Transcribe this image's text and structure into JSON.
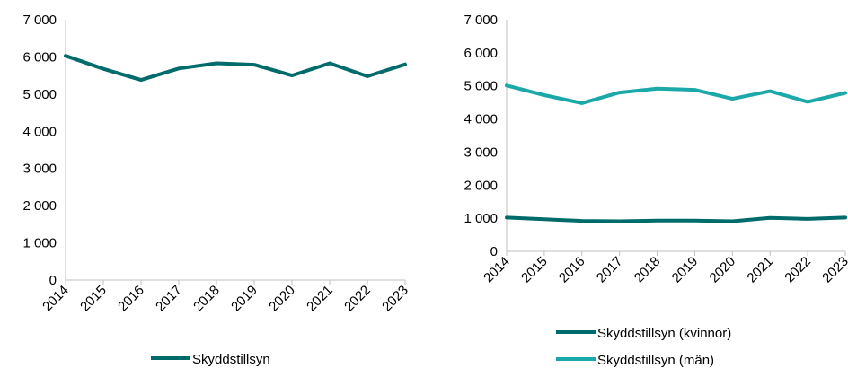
{
  "chart_data": [
    {
      "type": "line",
      "title": "",
      "xlabel": "",
      "ylabel": "",
      "x": [
        "2014",
        "2015",
        "2016",
        "2017",
        "2018",
        "2019",
        "2020",
        "2021",
        "2022",
        "2023"
      ],
      "ylim": [
        0,
        7000
      ],
      "yticks": [
        0,
        1000,
        2000,
        3000,
        4000,
        5000,
        6000,
        7000
      ],
      "ytick_labels": [
        "0",
        "1 000",
        "2 000",
        "3 000",
        "4 000",
        "5 000",
        "6 000",
        "7 000"
      ],
      "grid": false,
      "legend_position": "bottom",
      "series": [
        {
          "name": "Skyddstillsyn",
          "color": "#006b6b",
          "values": [
            6030,
            5680,
            5380,
            5690,
            5830,
            5790,
            5500,
            5830,
            5480,
            5800
          ]
        }
      ]
    },
    {
      "type": "line",
      "title": "",
      "xlabel": "",
      "ylabel": "",
      "x": [
        "2014",
        "2015",
        "2016",
        "2017",
        "2018",
        "2019",
        "2020",
        "2021",
        "2022",
        "2023"
      ],
      "ylim": [
        0,
        7000
      ],
      "yticks": [
        0,
        1000,
        2000,
        3000,
        4000,
        5000,
        6000,
        7000
      ],
      "ytick_labels": [
        "0",
        "1 000",
        "2 000",
        "3 000",
        "4 000",
        "5 000",
        "6 000",
        "7 000"
      ],
      "grid": false,
      "legend_position": "bottom",
      "series": [
        {
          "name": "Skyddstillsyn (kvinnor)",
          "color": "#006b6b",
          "values": [
            1020,
            970,
            920,
            910,
            930,
            930,
            910,
            1010,
            980,
            1020
          ]
        },
        {
          "name": "Skyddstillsyn (män)",
          "color": "#1aa8a8",
          "values": [
            5010,
            4720,
            4480,
            4800,
            4920,
            4880,
            4610,
            4840,
            4520,
            4790
          ]
        }
      ]
    }
  ]
}
